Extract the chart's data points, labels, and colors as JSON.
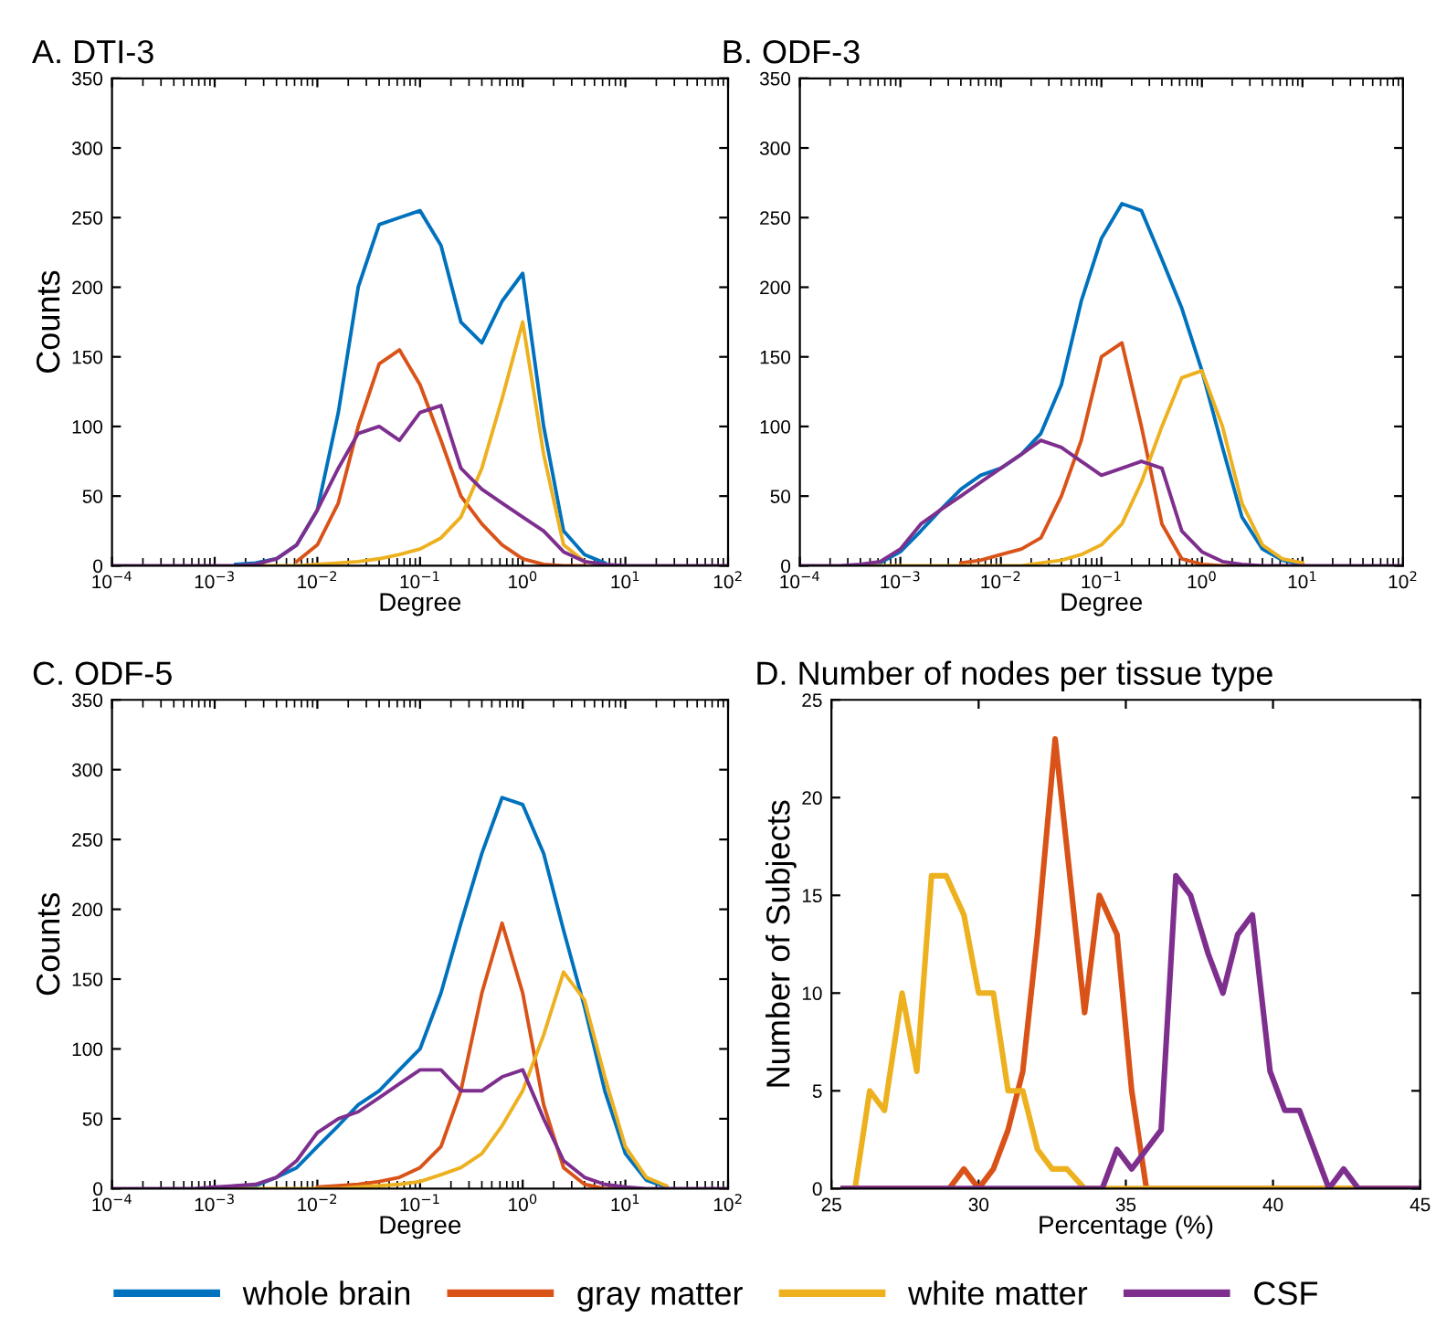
{
  "chart_data": [
    {
      "type": "line",
      "title": "A. DTI-3",
      "xlabel": "Degree",
      "ylabel": "Counts",
      "log": "x",
      "legend": "bottom",
      "x": [
        0.0001,
        0.00016,
        0.00025,
        0.0004,
        0.00063,
        0.001,
        0.0016,
        0.0025,
        0.004,
        0.0063,
        0.01,
        0.016,
        0.025,
        0.04,
        0.063,
        0.1,
        0.16,
        0.25,
        0.4,
        0.63,
        1,
        1.6,
        2.5,
        4,
        6.3,
        10,
        16,
        25,
        40,
        63,
        100
      ],
      "xlim": [
        0.0001,
        100
      ],
      "xticks": [
        {
          "value": 0.0001,
          "label": "10$^{−4}$"
        },
        {
          "value": 0.001,
          "label": "10$^{−3}$"
        },
        {
          "value": 0.01,
          "label": "10$^{−2}$"
        },
        {
          "value": 0.1,
          "label": "10$^{−1}$"
        },
        {
          "value": 1,
          "label": "10$^{0}$"
        },
        {
          "value": 10,
          "label": "10$^{1}$"
        },
        {
          "value": 100,
          "label": "10$^{2}$"
        }
      ],
      "ylim": [
        0,
        350
      ],
      "yticks": [
        0,
        50,
        100,
        150,
        200,
        250,
        300,
        350
      ],
      "series": [
        {
          "name": "whole brain",
          "color": "#0072bd",
          "values": [
            null,
            null,
            null,
            null,
            null,
            null,
            1,
            2,
            5,
            15,
            40,
            110,
            200,
            245,
            250,
            255,
            230,
            175,
            160,
            190,
            210,
            100,
            25,
            8,
            2,
            null,
            null,
            null,
            null,
            null,
            null
          ]
        },
        {
          "name": "gray matter",
          "color": "#d95319",
          "values": [
            null,
            null,
            null,
            null,
            null,
            null,
            null,
            null,
            null,
            3,
            15,
            45,
            100,
            145,
            155,
            130,
            90,
            50,
            30,
            15,
            5,
            1,
            0,
            0,
            null,
            null,
            null,
            null,
            null,
            null,
            null
          ]
        },
        {
          "name": "white matter",
          "color": "#edb120",
          "values": [
            null,
            null,
            null,
            null,
            null,
            null,
            null,
            0,
            0,
            0,
            1,
            2,
            3,
            5,
            8,
            12,
            20,
            35,
            70,
            120,
            175,
            80,
            15,
            3,
            0,
            null,
            null,
            null,
            null,
            null,
            null
          ]
        },
        {
          "name": "CSF",
          "color": "#7e2f8e",
          "values": [
            0,
            0,
            0,
            0,
            0,
            0,
            0,
            1,
            5,
            15,
            40,
            70,
            95,
            100,
            90,
            110,
            115,
            70,
            55,
            45,
            35,
            25,
            10,
            3,
            1,
            0,
            0,
            0,
            0,
            0,
            0
          ]
        }
      ]
    },
    {
      "type": "line",
      "title": "B. ODF-3",
      "xlabel": "Degree",
      "log": "x",
      "x": [
        0.0001,
        0.00016,
        0.00025,
        0.0004,
        0.00063,
        0.001,
        0.0016,
        0.0025,
        0.004,
        0.0063,
        0.01,
        0.016,
        0.025,
        0.04,
        0.063,
        0.1,
        0.16,
        0.25,
        0.4,
        0.63,
        1,
        1.6,
        2.5,
        4,
        6.3,
        10,
        16,
        25,
        40,
        63,
        100
      ],
      "xlim": [
        0.0001,
        100
      ],
      "xticks": [
        {
          "value": 0.0001,
          "label": "10$^{−4}$"
        },
        {
          "value": 0.001,
          "label": "10$^{−3}$"
        },
        {
          "value": 0.01,
          "label": "10$^{−2}$"
        },
        {
          "value": 0.1,
          "label": "10$^{−1}$"
        },
        {
          "value": 1,
          "label": "10$^{0}$"
        },
        {
          "value": 10,
          "label": "10$^{1}$"
        },
        {
          "value": 100,
          "label": "10$^{2}$"
        }
      ],
      "ylim": [
        0,
        350
      ],
      "yticks": [
        0,
        50,
        100,
        150,
        200,
        250,
        300,
        350
      ],
      "series": [
        {
          "color": "#0072bd",
          "values": [
            null,
            null,
            null,
            0,
            2,
            10,
            25,
            40,
            55,
            65,
            70,
            80,
            95,
            130,
            190,
            235,
            260,
            255,
            220,
            185,
            140,
            85,
            35,
            12,
            4,
            1,
            null,
            null,
            null,
            null,
            null
          ]
        },
        {
          "color": "#d95319",
          "values": [
            null,
            null,
            null,
            null,
            null,
            null,
            null,
            null,
            2,
            4,
            8,
            12,
            20,
            50,
            90,
            150,
            160,
            100,
            30,
            5,
            1,
            0,
            0,
            null,
            null,
            null,
            null,
            null,
            null,
            null,
            null
          ]
        },
        {
          "color": "#edb120",
          "values": [
            null,
            null,
            null,
            0,
            0,
            0,
            0,
            0,
            0,
            0,
            0,
            0,
            2,
            4,
            8,
            15,
            30,
            60,
            100,
            135,
            140,
            100,
            45,
            15,
            5,
            2,
            null,
            null,
            null,
            null,
            null
          ]
        },
        {
          "color": "#7e2f8e",
          "values": [
            0,
            0,
            0,
            1,
            3,
            12,
            30,
            40,
            50,
            60,
            70,
            80,
            90,
            85,
            75,
            65,
            70,
            75,
            70,
            25,
            10,
            3,
            1,
            0,
            0,
            0,
            0,
            0,
            0,
            0,
            0
          ]
        }
      ]
    },
    {
      "type": "line",
      "title": "C. ODF-5",
      "xlabel": "Degree",
      "ylabel": "Counts",
      "log": "x",
      "x": [
        0.0001,
        0.00016,
        0.00025,
        0.0004,
        0.00063,
        0.001,
        0.0016,
        0.0025,
        0.004,
        0.0063,
        0.01,
        0.016,
        0.025,
        0.04,
        0.063,
        0.1,
        0.16,
        0.25,
        0.4,
        0.63,
        1,
        1.6,
        2.5,
        4,
        6.3,
        10,
        16,
        25,
        40,
        63,
        100
      ],
      "xlim": [
        0.0001,
        100
      ],
      "xticks": [
        {
          "value": 0.0001,
          "label": "10$^{−4}$"
        },
        {
          "value": 0.001,
          "label": "10$^{−3}$"
        },
        {
          "value": 0.01,
          "label": "10$^{−2}$"
        },
        {
          "value": 0.1,
          "label": "10$^{−1}$"
        },
        {
          "value": 1,
          "label": "10$^{0}$"
        },
        {
          "value": 10,
          "label": "10$^{1}$"
        },
        {
          "value": 100,
          "label": "10$^{2}$"
        }
      ],
      "ylim": [
        0,
        350
      ],
      "yticks": [
        0,
        50,
        100,
        150,
        200,
        250,
        300,
        350
      ],
      "series": [
        {
          "color": "#0072bd",
          "values": [
            null,
            null,
            null,
            null,
            null,
            0,
            0,
            2,
            8,
            15,
            30,
            45,
            60,
            70,
            85,
            100,
            140,
            190,
            240,
            280,
            275,
            240,
            185,
            130,
            70,
            25,
            6,
            1,
            null,
            null,
            null
          ]
        },
        {
          "color": "#d95319",
          "values": [
            null,
            null,
            null,
            null,
            null,
            null,
            null,
            null,
            null,
            null,
            1,
            2,
            3,
            5,
            8,
            15,
            30,
            70,
            140,
            190,
            140,
            60,
            15,
            3,
            0,
            0,
            null,
            null,
            null,
            null,
            null
          ]
        },
        {
          "color": "#edb120",
          "values": [
            null,
            null,
            null,
            null,
            null,
            0,
            0,
            0,
            0,
            0,
            0,
            0,
            1,
            2,
            3,
            5,
            10,
            15,
            25,
            45,
            70,
            110,
            155,
            135,
            80,
            30,
            8,
            2,
            null,
            null,
            null
          ]
        },
        {
          "color": "#7e2f8e",
          "values": [
            0,
            0,
            0,
            0,
            0,
            1,
            2,
            3,
            8,
            20,
            40,
            50,
            55,
            65,
            75,
            85,
            85,
            70,
            70,
            80,
            85,
            50,
            20,
            8,
            3,
            1,
            0,
            0,
            0,
            0,
            0
          ]
        }
      ]
    },
    {
      "type": "line",
      "title": "D. Number of nodes per tissue type",
      "xlabel": "Percentage (%)",
      "ylabel": "Number of Subjects",
      "xlim": [
        25,
        45
      ],
      "xticks": [
        25,
        30,
        35,
        40,
        45
      ],
      "ylim": [
        0,
        25
      ],
      "yticks": [
        0,
        5,
        10,
        15,
        20,
        25
      ],
      "series": [
        {
          "color": "#d95319",
          "x": [
            25.4,
            29,
            29.5,
            30,
            30.5,
            31,
            31.5,
            32,
            32.6,
            33.1,
            33.6,
            34.1,
            34.7,
            35.2,
            35.7,
            45
          ],
          "values": [
            0,
            0,
            1,
            0,
            1,
            3,
            6,
            13,
            23,
            16,
            9,
            15,
            13,
            5,
            0,
            0
          ]
        },
        {
          "color": "#edb120",
          "x": [
            25.8,
            26.3,
            26.8,
            27.4,
            27.9,
            28.4,
            28.9,
            29.5,
            30,
            30.5,
            31,
            31.5,
            32,
            32.5,
            33,
            33.6,
            45
          ],
          "values": [
            0,
            5,
            4,
            10,
            6,
            16,
            16,
            14,
            10,
            10,
            5,
            5,
            2,
            1,
            1,
            0,
            0
          ]
        },
        {
          "color": "#7e2f8e",
          "x": [
            25.4,
            34.2,
            34.7,
            35.2,
            35.7,
            36.2,
            36.7,
            37.2,
            37.8,
            38.3,
            38.8,
            39.3,
            39.9,
            40.4,
            40.9,
            41.4,
            41.9,
            42.4,
            42.9,
            45
          ],
          "values": [
            0,
            0,
            2,
            1,
            2,
            3,
            16,
            15,
            12,
            10,
            13,
            14,
            6,
            4,
            4,
            2,
            0,
            1,
            0,
            0
          ]
        }
      ]
    }
  ]
}
